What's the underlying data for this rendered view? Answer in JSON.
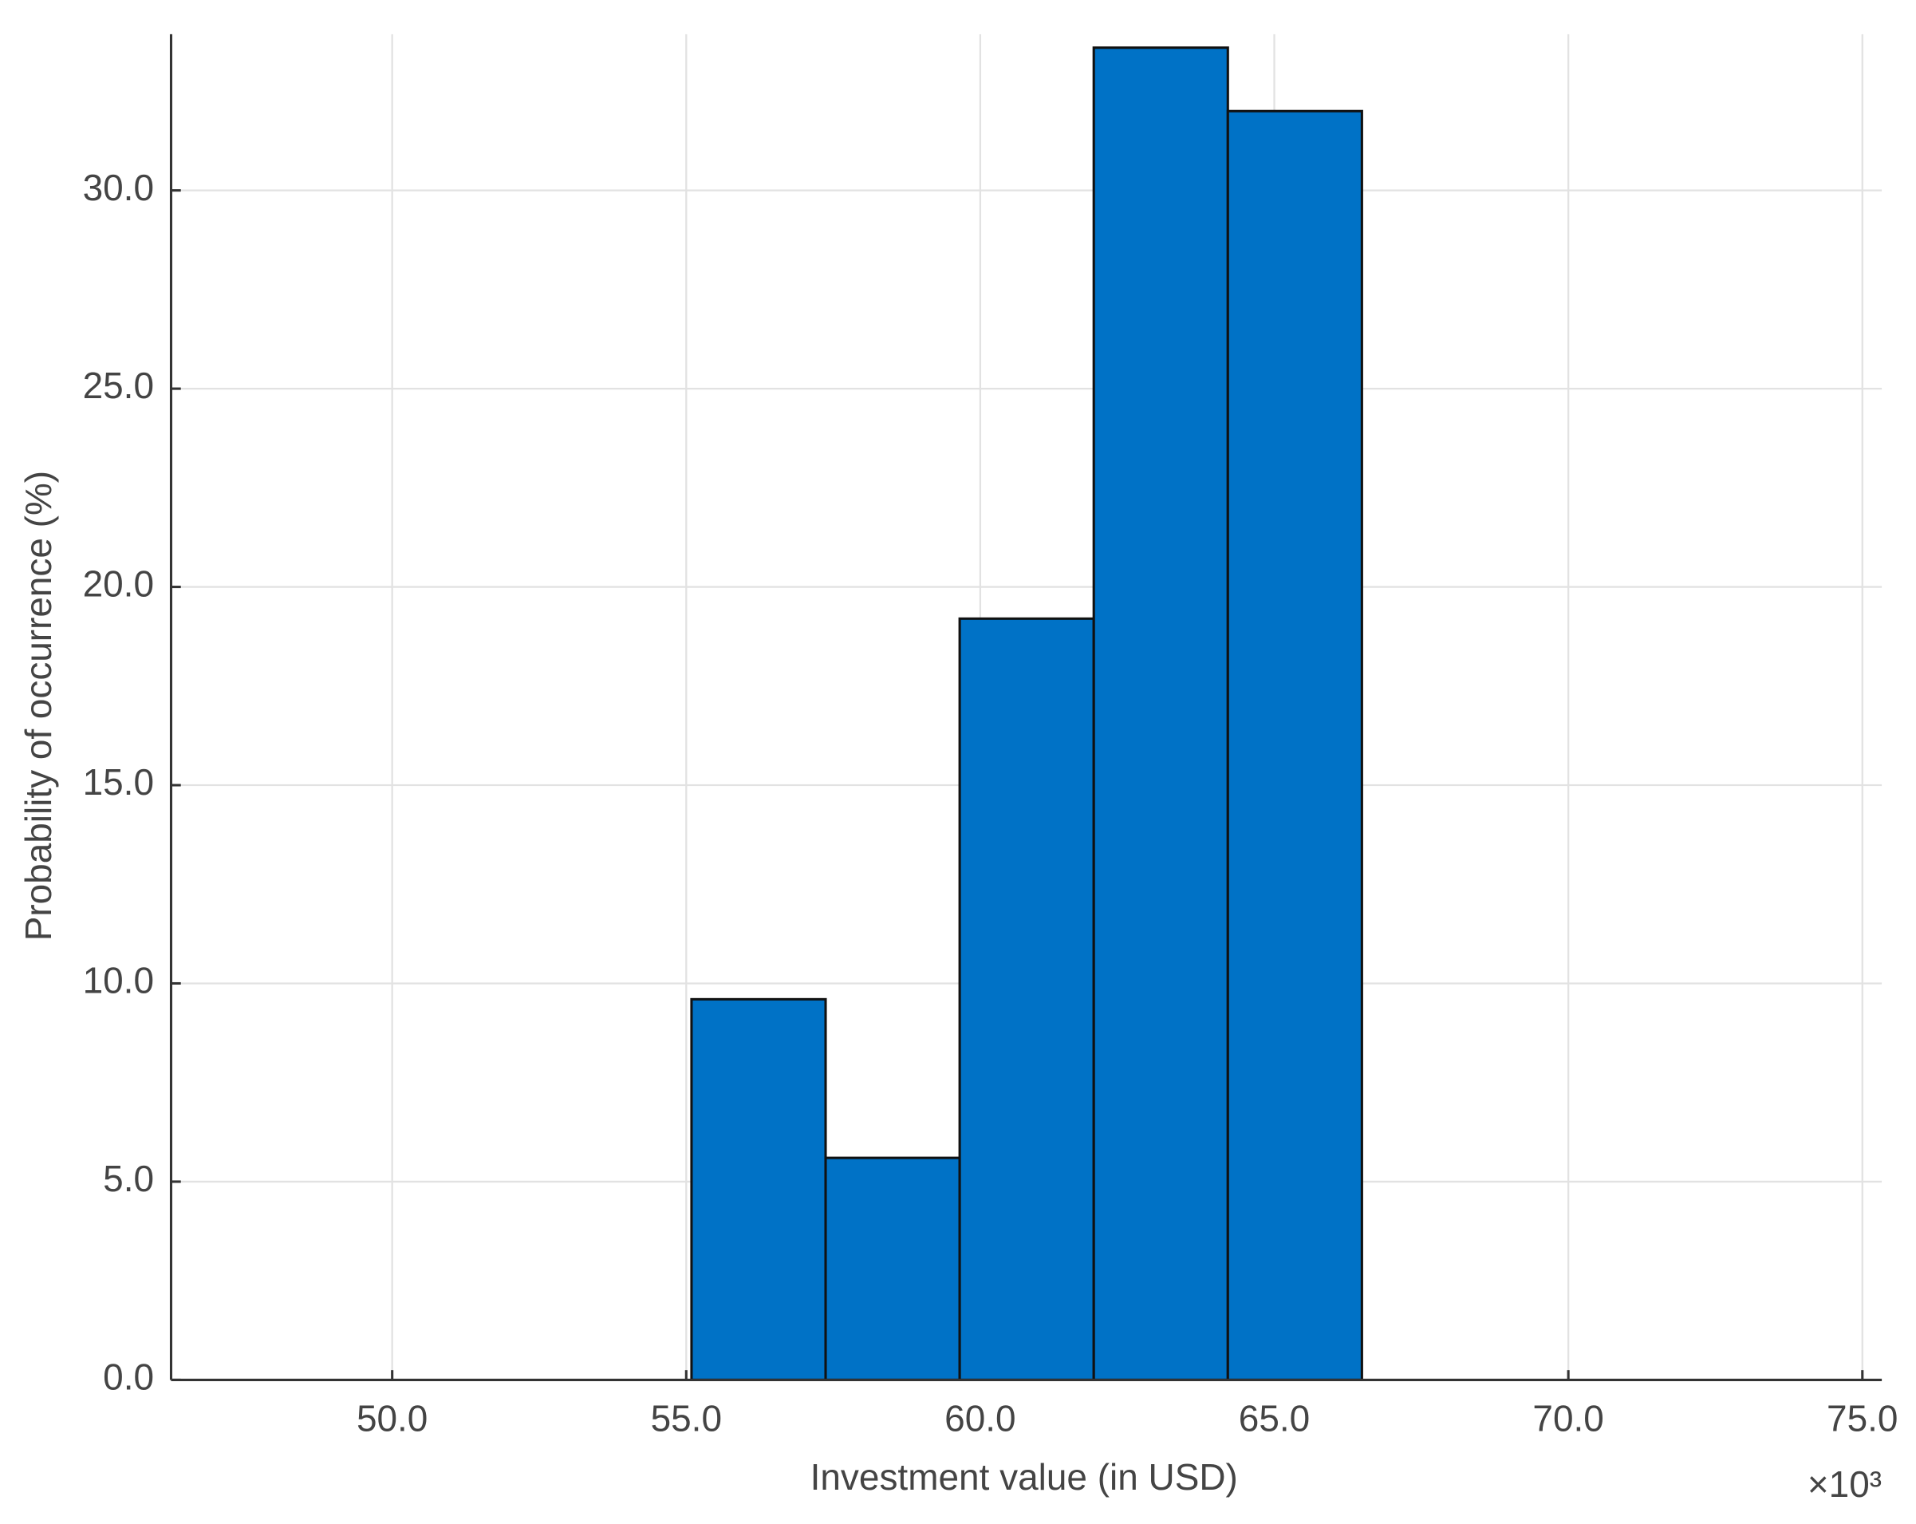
{
  "chart_data": {
    "type": "histogram",
    "xlabel": "Investment value (in USD)",
    "ylabel": "Probability of occurrence (%)",
    "x_exponent_label": "×10³",
    "bins": [
      55.09,
      57.37,
      59.65,
      61.93,
      64.21,
      66.49
    ],
    "values": [
      9.6,
      5.6,
      19.2,
      33.6,
      32.0
    ],
    "color": "#0072c6",
    "xlim": [
      46.24,
      75.33
    ],
    "ylim": [
      0,
      33.94
    ],
    "xticks": [
      {
        "value": 50,
        "label": "50.0"
      },
      {
        "value": 55,
        "label": "55.0"
      },
      {
        "value": 60,
        "label": "60.0"
      },
      {
        "value": 65,
        "label": "65.0"
      },
      {
        "value": 70,
        "label": "70.0"
      },
      {
        "value": 75,
        "label": "75.0"
      }
    ],
    "yticks": [
      {
        "value": 0,
        "label": "0.0"
      },
      {
        "value": 5,
        "label": "5.0"
      },
      {
        "value": 10,
        "label": "10.0"
      },
      {
        "value": 15,
        "label": "15.0"
      },
      {
        "value": 20,
        "label": "20.0"
      },
      {
        "value": 25,
        "label": "25.0"
      },
      {
        "value": 30,
        "label": "30.0"
      }
    ],
    "grid": true
  }
}
